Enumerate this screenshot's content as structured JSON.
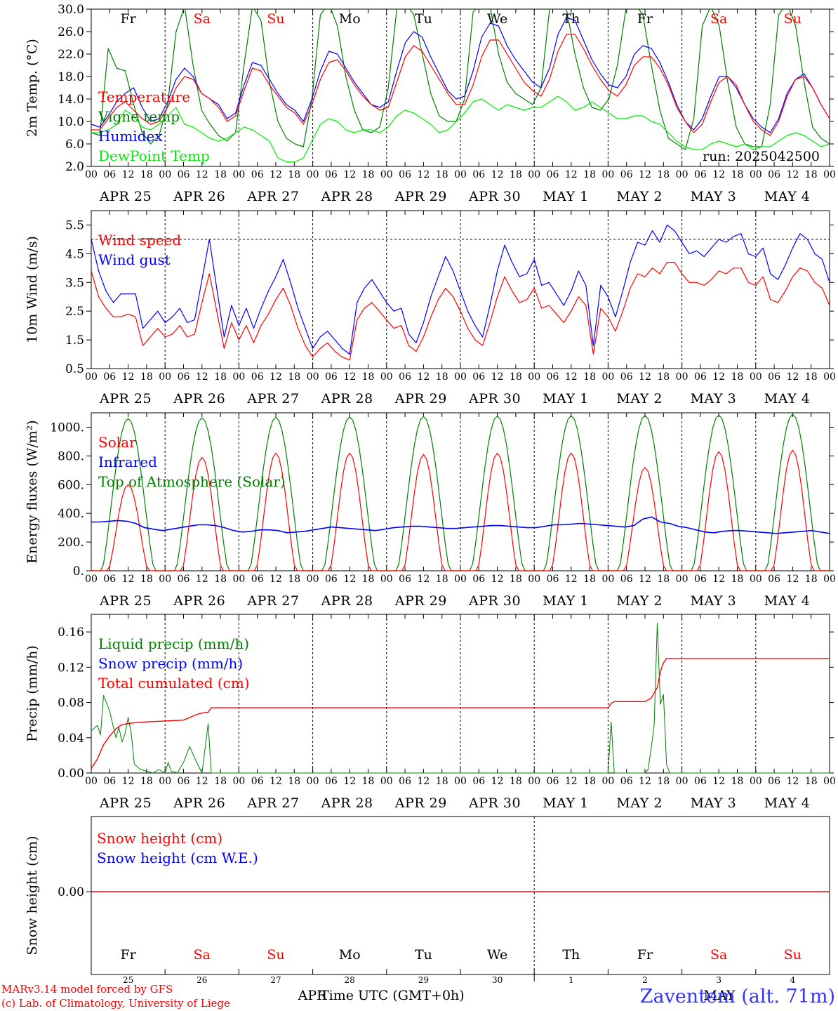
{
  "chart_data": [
    {
      "type": "line",
      "ylabel": "2m Temp. (°C)",
      "ylim": [
        2.0,
        30.0
      ],
      "yticks": [
        "2.0",
        "6.0",
        "10.0",
        "14.0",
        "18.0",
        "22.0",
        "26.0",
        "30.0"
      ],
      "day_names": [
        {
          "label": "Fr",
          "color": "#000000"
        },
        {
          "label": "Sa",
          "color": "#ff0000"
        },
        {
          "label": "Su",
          "color": "#ff0000"
        },
        {
          "label": "Mo",
          "color": "#000000"
        },
        {
          "label": "Tu",
          "color": "#000000"
        },
        {
          "label": "We",
          "color": "#000000"
        },
        {
          "label": "Th",
          "color": "#000000"
        },
        {
          "label": "Fr",
          "color": "#000000"
        },
        {
          "label": "Sa",
          "color": "#ff0000"
        },
        {
          "label": "Su",
          "color": "#ff0000"
        }
      ],
      "annotation": "run: 2025042500",
      "series": [
        {
          "name": "Temperature",
          "color": "#ff0000",
          "values": [
            8.5,
            8.5,
            10.5,
            12.5,
            13.5,
            12.0,
            10.5,
            9.5,
            10.0,
            12.5,
            16.0,
            18.0,
            17.5,
            15.0,
            14.0,
            12.5,
            10.0,
            11.0,
            15.5,
            19.5,
            19.0,
            16.5,
            14.5,
            12.5,
            11.5,
            9.5,
            13.0,
            17.5,
            20.5,
            21.0,
            19.0,
            16.5,
            14.5,
            13.0,
            12.0,
            12.5,
            17.0,
            21.5,
            23.5,
            22.5,
            20.0,
            17.5,
            15.0,
            13.0,
            13.0,
            16.5,
            21.5,
            24.5,
            24.5,
            22.0,
            19.5,
            17.0,
            15.5,
            14.5,
            17.5,
            22.5,
            25.5,
            25.5,
            23.0,
            20.0,
            17.5,
            15.5,
            14.5,
            16.5,
            20.0,
            21.5,
            21.5,
            19.5,
            16.5,
            12.5,
            10.0,
            8.0,
            9.5,
            13.5,
            17.0,
            18.0,
            16.5,
            13.0,
            10.0,
            8.5,
            7.5,
            10.0,
            14.5,
            17.5,
            18.0,
            16.0,
            13.0,
            10.5
          ]
        },
        {
          "name": "Vigne temp",
          "color": "#008000",
          "values": [
            8.0,
            7.5,
            23.0,
            19.5,
            19.0,
            13.0,
            8.0,
            6.0,
            7.5,
            13.0,
            26.0,
            30.5,
            20.0,
            12.0,
            9.5,
            7.5,
            6.5,
            8.0,
            20.0,
            30.5,
            28.0,
            17.0,
            10.0,
            7.0,
            6.0,
            5.5,
            14.0,
            29.0,
            31.0,
            27.0,
            18.0,
            12.0,
            8.5,
            8.0,
            9.0,
            16.0,
            30.0,
            31.0,
            29.0,
            22.0,
            15.0,
            11.0,
            10.0,
            10.0,
            14.0,
            29.5,
            31.0,
            30.5,
            22.0,
            17.0,
            15.0,
            14.0,
            13.0,
            16.0,
            30.0,
            31.5,
            30.0,
            22.0,
            16.0,
            12.5,
            12.0,
            14.0,
            20.0,
            30.0,
            31.0,
            29.0,
            20.0,
            12.0,
            7.0,
            6.0,
            5.0,
            10.5,
            27.0,
            30.5,
            27.0,
            17.0,
            9.0,
            6.0,
            5.5,
            5.5,
            13.0,
            29.0,
            31.0,
            27.0,
            17.0,
            9.0,
            7.0,
            6.0
          ]
        },
        {
          "name": "Humidex",
          "color": "#0000ff",
          "values": [
            9.5,
            9.0,
            11.0,
            13.5,
            15.0,
            16.0,
            12.5,
            10.0,
            10.5,
            13.5,
            17.5,
            19.5,
            18.0,
            15.0,
            14.0,
            13.0,
            10.5,
            11.5,
            16.5,
            20.5,
            20.0,
            17.5,
            15.0,
            13.0,
            12.0,
            10.0,
            14.0,
            19.0,
            22.5,
            22.0,
            19.5,
            17.0,
            15.0,
            13.0,
            12.5,
            13.5,
            19.0,
            24.0,
            26.0,
            25.0,
            21.5,
            18.5,
            15.5,
            14.0,
            14.5,
            19.0,
            25.0,
            27.5,
            27.0,
            23.5,
            21.0,
            19.0,
            17.0,
            16.0,
            19.5,
            25.5,
            28.5,
            28.0,
            24.5,
            21.0,
            18.5,
            16.5,
            16.0,
            18.0,
            22.0,
            23.5,
            23.0,
            20.5,
            17.0,
            13.0,
            10.0,
            8.5,
            10.5,
            14.5,
            18.0,
            18.0,
            16.0,
            13.0,
            10.5,
            9.0,
            8.0,
            10.5,
            15.0,
            17.5,
            18.5,
            16.0,
            13.0,
            10.5
          ]
        },
        {
          "name": "DewPoint Temp",
          "color": "#00ee00",
          "values": [
            8.0,
            8.0,
            8.5,
            9.5,
            12.0,
            11.0,
            9.0,
            8.5,
            9.5,
            11.0,
            12.5,
            9.5,
            9.0,
            8.0,
            7.0,
            6.5,
            7.0,
            8.0,
            9.0,
            8.5,
            7.5,
            6.5,
            3.5,
            2.8,
            2.8,
            3.5,
            6.5,
            9.5,
            10.5,
            10.0,
            8.5,
            8.0,
            8.5,
            8.5,
            8.0,
            9.0,
            11.0,
            12.0,
            11.5,
            10.5,
            9.5,
            8.0,
            8.5,
            10.0,
            11.5,
            13.5,
            14.0,
            13.0,
            12.0,
            13.0,
            12.5,
            12.0,
            12.5,
            12.5,
            13.5,
            14.5,
            13.5,
            12.0,
            12.5,
            13.5,
            12.5,
            11.5,
            10.5,
            10.5,
            11.0,
            11.0,
            10.0,
            9.5,
            8.0,
            6.5,
            5.5,
            5.0,
            5.0,
            6.0,
            6.5,
            6.0,
            5.5,
            6.0,
            5.0,
            5.5,
            5.5,
            6.5,
            7.5,
            8.0,
            7.5,
            6.5,
            5.5,
            6.0
          ]
        }
      ]
    },
    {
      "type": "line",
      "ylabel": "10m Wind (m/s)",
      "ylim": [
        0.5,
        6.0
      ],
      "yticks": [
        "0.5",
        "1.5",
        "2.5",
        "3.5",
        "4.5",
        "5.5"
      ],
      "reference_line": 5.0,
      "series": [
        {
          "name": "Wind speed",
          "color": "#ff0000",
          "values": [
            3.9,
            3.0,
            2.6,
            2.3,
            2.3,
            2.4,
            2.3,
            1.3,
            1.6,
            1.9,
            1.6,
            1.7,
            2.0,
            1.6,
            1.7,
            2.8,
            3.8,
            2.5,
            1.2,
            2.1,
            1.5,
            2.0,
            1.4,
            2.0,
            2.4,
            2.9,
            3.3,
            2.7,
            1.9,
            1.3,
            0.9,
            1.2,
            1.4,
            1.1,
            0.9,
            0.8,
            2.2,
            2.6,
            2.8,
            2.5,
            2.2,
            1.9,
            2.0,
            1.3,
            1.1,
            1.6,
            2.3,
            2.9,
            3.3,
            3.0,
            2.5,
            1.9,
            1.5,
            1.3,
            2.1,
            3.0,
            3.7,
            3.2,
            2.8,
            2.9,
            3.3,
            2.6,
            2.7,
            2.4,
            2.1,
            2.5,
            3.0,
            2.7,
            1.0,
            2.6,
            2.3,
            1.8,
            2.5,
            3.3,
            3.8,
            3.7,
            4.0,
            3.8,
            4.2,
            4.2,
            3.8,
            3.5,
            3.5,
            3.4,
            3.6,
            3.9,
            3.8,
            4.0,
            4.0,
            3.5,
            3.4,
            3.7,
            2.9,
            2.8,
            3.2,
            3.7,
            4.0,
            3.9,
            3.5,
            3.3,
            2.7
          ]
        },
        {
          "name": "Wind gust",
          "color": "#0000ff",
          "values": [
            5.0,
            3.9,
            3.2,
            2.8,
            3.1,
            3.1,
            3.1,
            1.9,
            2.2,
            2.5,
            2.1,
            2.3,
            2.6,
            2.1,
            2.2,
            3.6,
            5.0,
            3.3,
            1.6,
            2.7,
            2.0,
            2.6,
            1.9,
            2.6,
            3.2,
            3.7,
            4.3,
            3.5,
            2.6,
            1.9,
            1.2,
            1.6,
            1.8,
            1.5,
            1.2,
            1.0,
            2.8,
            3.3,
            3.6,
            3.2,
            2.8,
            2.5,
            2.6,
            1.7,
            1.4,
            2.1,
            3.0,
            3.7,
            4.4,
            3.9,
            3.2,
            2.5,
            2.0,
            1.6,
            2.7,
            3.9,
            4.8,
            4.2,
            3.7,
            3.8,
            4.3,
            3.4,
            3.5,
            3.1,
            2.7,
            3.2,
            3.9,
            3.4,
            1.3,
            3.4,
            3.0,
            2.3,
            3.2,
            4.2,
            4.9,
            4.8,
            5.3,
            4.9,
            5.5,
            5.3,
            4.9,
            4.5,
            4.6,
            4.4,
            4.7,
            5.0,
            4.9,
            5.1,
            5.2,
            4.5,
            4.4,
            4.7,
            3.8,
            3.6,
            4.1,
            4.7,
            5.2,
            5.0,
            4.5,
            4.3,
            3.5
          ]
        }
      ]
    },
    {
      "type": "line",
      "ylabel": "Energy fluxes (W/m²)",
      "ylim": [
        0,
        1100
      ],
      "yticks": [
        "0.",
        "200.",
        "400.",
        "600.",
        "800.",
        "1000."
      ],
      "series": [
        {
          "name": "Solar",
          "color": "#ff0000",
          "peaks": [
            600,
            790,
            820,
            820,
            810,
            820,
            820,
            720,
            830,
            840
          ]
        },
        {
          "name": "Infrared",
          "color": "#0000ff",
          "values": [
            340,
            340,
            345,
            350,
            345,
            330,
            300,
            290,
            280,
            290,
            300,
            310,
            320,
            320,
            315,
            300,
            280,
            270,
            275,
            285,
            285,
            280,
            265,
            270,
            275,
            285,
            295,
            305,
            300,
            295,
            290,
            285,
            280,
            290,
            300,
            305,
            310,
            310,
            305,
            300,
            295,
            295,
            300,
            305,
            310,
            315,
            315,
            310,
            305,
            300,
            300,
            310,
            320,
            320,
            325,
            330,
            325,
            320,
            315,
            310,
            305,
            315,
            360,
            375,
            340,
            330,
            310,
            300,
            285,
            270,
            265,
            275,
            280,
            280,
            275,
            270,
            265,
            260,
            265,
            270,
            275,
            280,
            270,
            260
          ]
        },
        {
          "name": "Top of Atmosphere (Solar)",
          "color": "#008000",
          "peaks": [
            1060,
            1065,
            1070,
            1072,
            1075,
            1078,
            1080,
            1082,
            1085,
            1090
          ]
        }
      ]
    },
    {
      "type": "line",
      "ylabel": "Precip (mm/h)",
      "ylim": [
        0,
        0.18
      ],
      "yticks": [
        "0.00",
        "0.04",
        "0.08",
        "0.12",
        "0.16"
      ],
      "series": [
        {
          "name": "Liquid precip (mm/h)",
          "color": "#008000"
        },
        {
          "name": "Snow precip (mm/h)",
          "color": "#0000ff"
        },
        {
          "name": "Total cumulated (cm)",
          "color": "#ff0000"
        }
      ]
    },
    {
      "type": "line",
      "ylabel": "Snow height (cm)",
      "yticks": [
        "0.00"
      ],
      "series": [
        {
          "name": "Snow height (cm)",
          "color": "#ff0000",
          "value": 0.0
        },
        {
          "name": "Snow height (cm W.E.)",
          "color": "#0000ff"
        }
      ],
      "bottom_day_names": [
        "Fr",
        "Sa",
        "Su",
        "Mo",
        "Tu",
        "We",
        "Th",
        "Fr",
        "Sa",
        "Su"
      ],
      "bottom_day_numbers": [
        "25",
        "26",
        "27",
        "28",
        "29",
        "30",
        "1",
        "2",
        "3",
        "4"
      ],
      "month_labels": [
        "APR",
        "MAY"
      ]
    }
  ],
  "x_axis": {
    "hour_ticks": [
      "00",
      "06",
      "12",
      "18"
    ],
    "date_labels": [
      "APR 25",
      "APR 26",
      "APR 27",
      "APR 28",
      "APR 29",
      "APR 30",
      "MAY  1",
      "MAY  2",
      "MAY  3",
      "MAY  4"
    ],
    "xlabel": "Time UTC (GMT+0h)"
  },
  "footer": {
    "model_line": "MARv3.14 model forced by GFS",
    "credit_line": "(c) Lab. of Climatology, University of Liege",
    "station": "Zaventem (alt. 71m)"
  },
  "colors": {
    "red": "#ff0000",
    "green": "#008000",
    "blue": "#0000ff",
    "light_green": "#00ee00"
  }
}
